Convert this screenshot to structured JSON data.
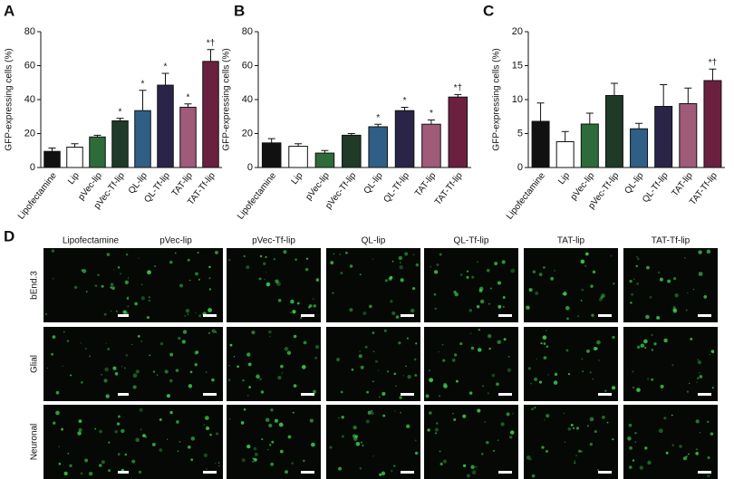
{
  "chart_data": [
    {
      "type": "bar",
      "panel": "A",
      "ylabel": "GFP-expressing cells (%)",
      "categories": [
        "Lipofectamine",
        "Lip",
        "pVec-lip",
        "pVec-Tf-lip",
        "QL-lip",
        "QL-Tf-lip",
        "TAT-lip",
        "TAT-Tf-lip"
      ],
      "values": [
        9.5,
        12,
        18,
        27.5,
        33.5,
        48.5,
        35.5,
        62.5
      ],
      "errors": [
        2,
        2,
        1,
        1.5,
        12,
        7,
        2,
        7
      ],
      "annotations": [
        null,
        null,
        null,
        "*",
        "*",
        "*",
        "*",
        "*†"
      ],
      "colors": [
        "#111111",
        "#ffffff",
        "#2e6b3a",
        "#1f3a27",
        "#2f5f86",
        "#2a2448",
        "#a05a7a",
        "#6b2040"
      ],
      "ylim": [
        0,
        80
      ],
      "yticks": [
        0,
        20,
        40,
        60,
        80
      ]
    },
    {
      "type": "bar",
      "panel": "B",
      "ylabel": "GFP-expressing cells (%)",
      "categories": [
        "Lipofectamine",
        "Lip",
        "pVec-lip",
        "pVec-Tf-lip",
        "QL-lip",
        "QL-Tf-lip",
        "TAT-lip",
        "TAT-Tf-lip"
      ],
      "values": [
        14.5,
        12.5,
        8.5,
        19,
        24,
        33.5,
        25.5,
        41.5
      ],
      "errors": [
        2.5,
        1.5,
        1.5,
        1,
        1.5,
        2,
        2.5,
        1.5
      ],
      "annotations": [
        null,
        null,
        null,
        null,
        "*",
        "*",
        "*",
        "*†"
      ],
      "colors": [
        "#111111",
        "#ffffff",
        "#2e6b3a",
        "#1f3a27",
        "#2f5f86",
        "#2a2448",
        "#a05a7a",
        "#6b2040"
      ],
      "ylim": [
        0,
        80
      ],
      "yticks": [
        0,
        20,
        40,
        60,
        80
      ]
    },
    {
      "type": "bar",
      "panel": "C",
      "ylabel": "GFP-expressing cells (%)",
      "categories": [
        "Lipofectamine",
        "Lip",
        "pVec-lip",
        "pVec-Tf-lip",
        "QL-lip",
        "QL-Tf-lip",
        "TAT-lip",
        "TAT-Tf-lip"
      ],
      "values": [
        6.8,
        3.8,
        6.4,
        10.6,
        5.7,
        9.0,
        9.4,
        12.8
      ],
      "errors": [
        2.7,
        1.5,
        1.6,
        1.8,
        0.8,
        3.2,
        2.3,
        1.7
      ],
      "annotations": [
        null,
        null,
        null,
        null,
        null,
        null,
        null,
        "*†"
      ],
      "colors": [
        "#111111",
        "#ffffff",
        "#2e6b3a",
        "#1f3a27",
        "#2f5f86",
        "#2a2448",
        "#a05a7a",
        "#6b2040"
      ],
      "ylim": [
        0,
        20
      ],
      "yticks": [
        0,
        5,
        10,
        15,
        20
      ]
    }
  ],
  "panel_d": {
    "label": "D",
    "columns": [
      "Lipofectamine",
      "pVec-lip",
      "pVec-Tf-lip",
      "QL-lip",
      "QL-Tf-lip",
      "TAT-lip",
      "TAT-Tf-lip"
    ],
    "rows": [
      "bEnd.3",
      "Glial",
      "Neuronal"
    ]
  }
}
